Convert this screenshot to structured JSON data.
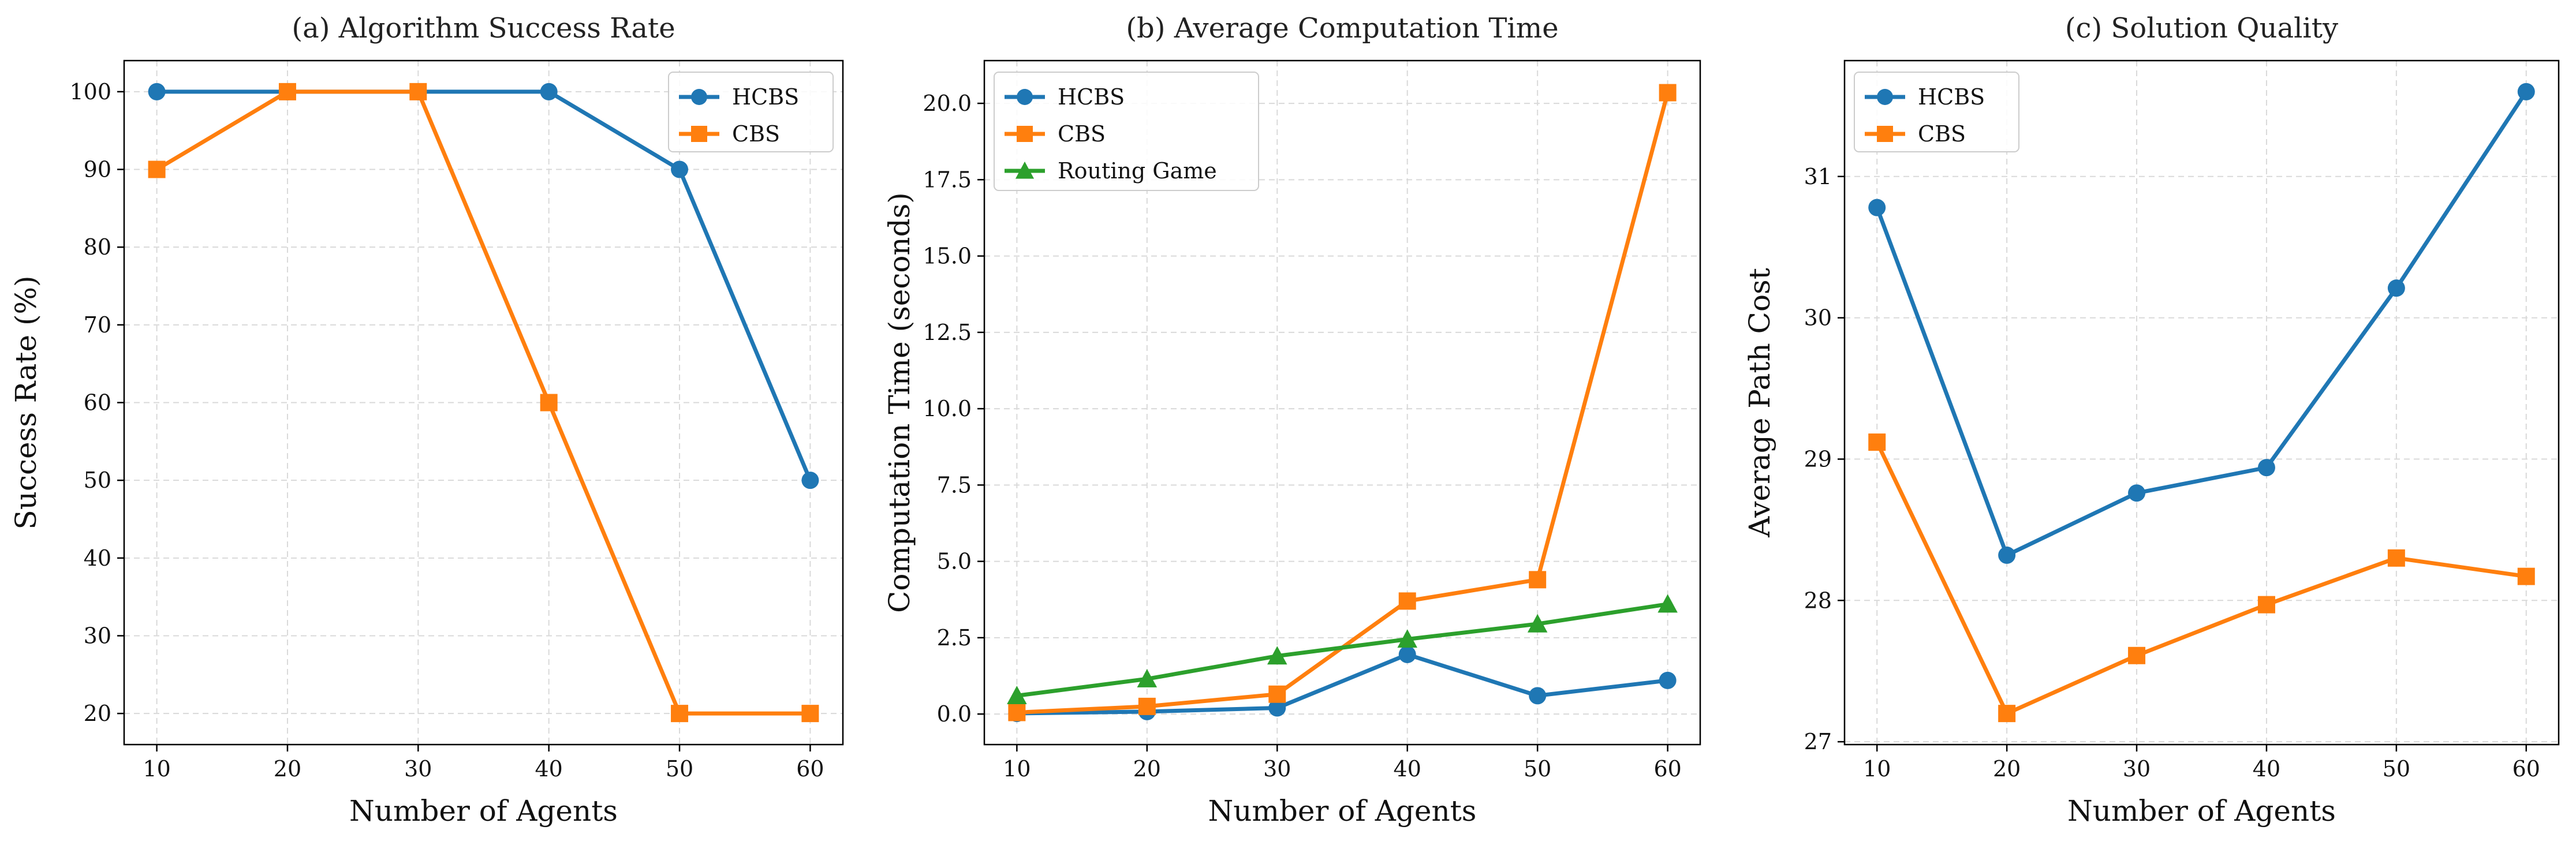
{
  "colors": {
    "HCBS": "#1f77b4",
    "CBS": "#ff7f0e",
    "Routing Game": "#2ca02c",
    "grid": "#d9d9d9",
    "axis": "#000000"
  },
  "chart_data": [
    {
      "type": "line",
      "title": "(a) Algorithm Success Rate",
      "xlabel": "Number of Agents",
      "ylabel": "Success Rate (%)",
      "x": [
        10,
        20,
        30,
        40,
        50,
        60
      ],
      "xticks": [
        10,
        20,
        30,
        40,
        50,
        60
      ],
      "xlim": [
        7.5,
        62.5
      ],
      "ylim": [
        16,
        104
      ],
      "yticks": [
        20,
        30,
        40,
        50,
        60,
        70,
        80,
        90,
        100
      ],
      "ytick_labels": [
        "20",
        "30",
        "40",
        "50",
        "60",
        "70",
        "80",
        "90",
        "100"
      ],
      "grid": true,
      "legend_position": "top-right",
      "series": [
        {
          "name": "HCBS",
          "marker": "circle",
          "values": [
            100,
            100,
            100,
            100,
            90,
            50
          ]
        },
        {
          "name": "CBS",
          "marker": "square",
          "values": [
            90,
            100,
            100,
            60,
            20,
            20
          ]
        }
      ]
    },
    {
      "type": "line",
      "title": "(b) Average Computation Time",
      "xlabel": "Number of Agents",
      "ylabel": "Computation Time (seconds)",
      "x": [
        10,
        20,
        30,
        40,
        50,
        60
      ],
      "xticks": [
        10,
        20,
        30,
        40,
        50,
        60
      ],
      "xlim": [
        7.5,
        62.5
      ],
      "ylim": [
        -1.0,
        21.4
      ],
      "yticks": [
        0.0,
        2.5,
        5.0,
        7.5,
        10.0,
        12.5,
        15.0,
        17.5,
        20.0
      ],
      "ytick_labels": [
        "0.0",
        "2.5",
        "5.0",
        "7.5",
        "10.0",
        "12.5",
        "15.0",
        "17.5",
        "20.0"
      ],
      "grid": true,
      "legend_position": "top-left",
      "series": [
        {
          "name": "HCBS",
          "marker": "circle",
          "values": [
            0.02,
            0.08,
            0.2,
            1.95,
            0.6,
            1.1
          ]
        },
        {
          "name": "CBS",
          "marker": "square",
          "values": [
            0.05,
            0.25,
            0.65,
            3.7,
            4.4,
            20.35
          ]
        },
        {
          "name": "Routing Game",
          "marker": "triangle",
          "values": [
            0.6,
            1.15,
            1.9,
            2.45,
            2.95,
            3.6
          ]
        }
      ]
    },
    {
      "type": "line",
      "title": "(c) Solution Quality",
      "xlabel": "Number of Agents",
      "ylabel": "Average Path Cost",
      "x": [
        10,
        20,
        30,
        40,
        50,
        60
      ],
      "xticks": [
        10,
        20,
        30,
        40,
        50,
        60
      ],
      "xlim": [
        7.5,
        62.5
      ],
      "ylim": [
        26.98,
        31.82
      ],
      "yticks": [
        27,
        28,
        29,
        30,
        31
      ],
      "ytick_labels": [
        "27",
        "28",
        "29",
        "30",
        "31"
      ],
      "grid": true,
      "legend_position": "top-left",
      "series": [
        {
          "name": "HCBS",
          "marker": "circle",
          "values": [
            30.78,
            28.32,
            28.76,
            28.94,
            30.21,
            31.6
          ]
        },
        {
          "name": "CBS",
          "marker": "square",
          "values": [
            29.12,
            27.2,
            27.61,
            27.97,
            28.3,
            28.17
          ]
        }
      ]
    }
  ]
}
